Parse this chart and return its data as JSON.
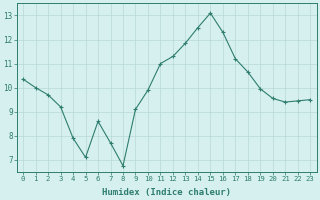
{
  "x": [
    0,
    1,
    2,
    3,
    4,
    5,
    6,
    7,
    8,
    9,
    10,
    11,
    12,
    13,
    14,
    15,
    16,
    17,
    18,
    19,
    20,
    21,
    22,
    23
  ],
  "y": [
    10.35,
    10.0,
    9.7,
    9.2,
    7.9,
    7.1,
    8.6,
    7.7,
    6.75,
    9.1,
    9.9,
    11.0,
    11.3,
    11.85,
    12.5,
    13.1,
    12.3,
    11.2,
    10.65,
    9.95,
    9.55,
    9.4,
    9.45,
    9.5
  ],
  "line_color": "#2e7d6e",
  "marker": "+",
  "marker_size": 3,
  "marker_lw": 0.8,
  "line_width": 0.8,
  "bg_color": "#d6f0f0",
  "grid_color": "#b8d8d4",
  "xlabel": "Humidex (Indice chaleur)",
  "xlim": [
    -0.5,
    23.5
  ],
  "ylim": [
    6.5,
    13.5
  ],
  "yticks": [
    7,
    8,
    9,
    10,
    11,
    12,
    13
  ],
  "xticks": [
    0,
    1,
    2,
    3,
    4,
    5,
    6,
    7,
    8,
    9,
    10,
    11,
    12,
    13,
    14,
    15,
    16,
    17,
    18,
    19,
    20,
    21,
    22,
    23
  ],
  "border_color": "#2e7d6e",
  "tick_color": "#2e7d6e",
  "label_color": "#2e7d6e",
  "xlabel_fontsize": 6.5,
  "tick_fontsize": 5.2,
  "ytick_fontsize": 5.5
}
